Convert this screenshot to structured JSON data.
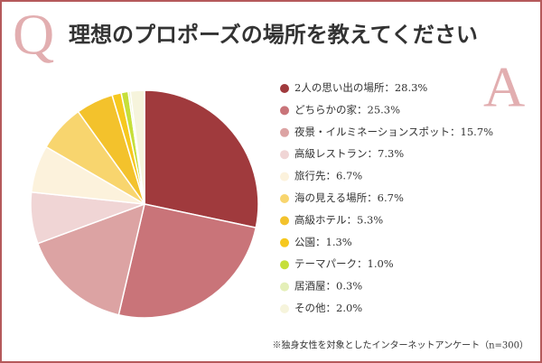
{
  "chart_data": {
    "type": "pie",
    "title": "理想のプロポーズの場所を教えてください",
    "categories": [
      "2人の思い出の場所",
      "どちらかの家",
      "夜景・イルミネーションスポット",
      "高級レストラン",
      "旅行先",
      "海の見える場所",
      "高級ホテル",
      "公園",
      "テーマパーク",
      "居酒屋",
      "その他"
    ],
    "values": [
      28.3,
      25.3,
      15.7,
      7.3,
      6.7,
      6.7,
      5.3,
      1.3,
      1.0,
      0.3,
      2.0
    ],
    "value_labels": [
      "28.3%",
      "25.3%",
      "15.7%",
      "7.3%",
      "6.7%",
      "6.7%",
      "5.3%",
      "1.3%",
      "1.0%",
      "0.3%",
      "2.0%"
    ],
    "label_separator": "：",
    "colors": [
      "#a03a3d",
      "#c97479",
      "#dca3a3",
      "#f0d5d5",
      "#fcf2dc",
      "#f8d56e",
      "#f3c22c",
      "#f6c81e",
      "#c6df3a",
      "#e4efb8",
      "#f6f4dc"
    ],
    "note": "※独身女性を対象としたインターネットアンケート（n=300）"
  },
  "decor": {
    "q": "Q",
    "a": "A"
  }
}
